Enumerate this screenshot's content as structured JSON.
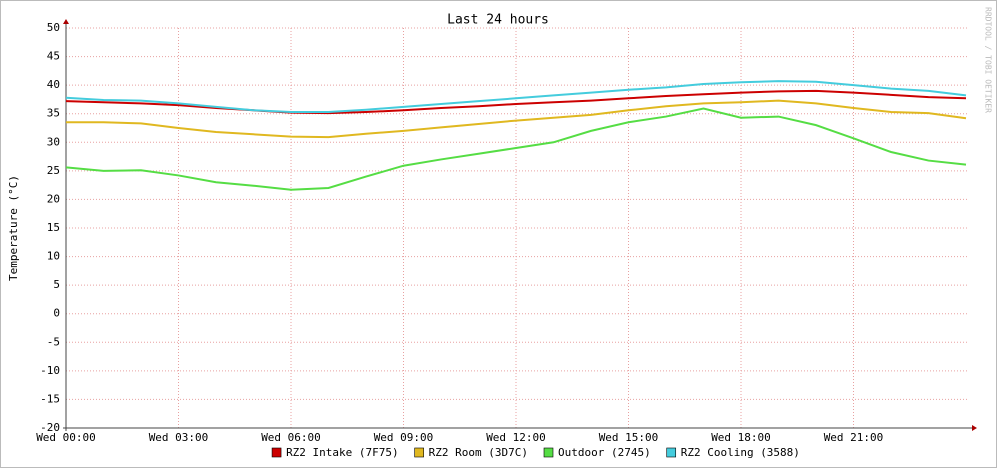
{
  "chart_data": {
    "type": "line",
    "title": "Last 24 hours",
    "ylabel": "Temperature (°C)",
    "watermark": "RRDTOOL / TOBI OETIKER",
    "x": [
      0,
      1,
      2,
      3,
      4,
      5,
      6,
      7,
      8,
      9,
      10,
      11,
      12,
      13,
      14,
      15,
      16,
      17,
      18,
      19,
      20,
      21,
      22,
      23,
      24
    ],
    "xlim": [
      0,
      24
    ],
    "xticks": [
      {
        "value": 0,
        "label": "Wed 00:00"
      },
      {
        "value": 3,
        "label": "Wed 03:00"
      },
      {
        "value": 6,
        "label": "Wed 06:00"
      },
      {
        "value": 9,
        "label": "Wed 09:00"
      },
      {
        "value": 12,
        "label": "Wed 12:00"
      },
      {
        "value": 15,
        "label": "Wed 15:00"
      },
      {
        "value": 18,
        "label": "Wed 18:00"
      },
      {
        "value": 21,
        "label": "Wed 21:00"
      }
    ],
    "ylim": [
      -20,
      50
    ],
    "yticks": [
      -20,
      -15,
      -10,
      -5,
      0,
      5,
      10,
      15,
      20,
      25,
      30,
      35,
      40,
      45,
      50
    ],
    "grid": true,
    "series": [
      {
        "name": "RZ2 Intake (7F75)",
        "color": "#cc0000",
        "values": [
          37.2,
          37.0,
          36.8,
          36.5,
          36.0,
          35.6,
          35.2,
          35.1,
          35.3,
          35.6,
          36.0,
          36.3,
          36.7,
          37.0,
          37.3,
          37.7,
          38.1,
          38.4,
          38.7,
          38.9,
          39.0,
          38.7,
          38.3,
          37.9,
          37.7
        ]
      },
      {
        "name": "RZ2 Room (3D7C)",
        "color": "#e0b820",
        "values": [
          33.5,
          33.5,
          33.3,
          32.5,
          31.8,
          31.4,
          31.0,
          30.9,
          31.5,
          32.0,
          32.6,
          33.2,
          33.8,
          34.3,
          34.8,
          35.6,
          36.3,
          36.8,
          37.0,
          37.3,
          36.8,
          36.0,
          35.3,
          35.1,
          34.2
        ]
      },
      {
        "name": "Outdoor (2745)",
        "color": "#55dd44",
        "values": [
          25.6,
          25.0,
          25.1,
          24.2,
          23.0,
          22.4,
          21.7,
          22.0,
          24.0,
          25.9,
          27.0,
          28.0,
          29.0,
          30.0,
          32.0,
          33.5,
          34.5,
          35.9,
          34.3,
          34.5,
          33.0,
          30.7,
          28.3,
          26.8,
          26.1
        ]
      },
      {
        "name": "RZ2 Cooling (3588)",
        "color": "#44ccdd",
        "values": [
          37.8,
          37.4,
          37.3,
          36.8,
          36.2,
          35.6,
          35.3,
          35.3,
          35.7,
          36.2,
          36.7,
          37.2,
          37.7,
          38.2,
          38.7,
          39.2,
          39.6,
          40.2,
          40.5,
          40.7,
          40.6,
          40.0,
          39.4,
          39.0,
          38.2
        ]
      }
    ]
  }
}
